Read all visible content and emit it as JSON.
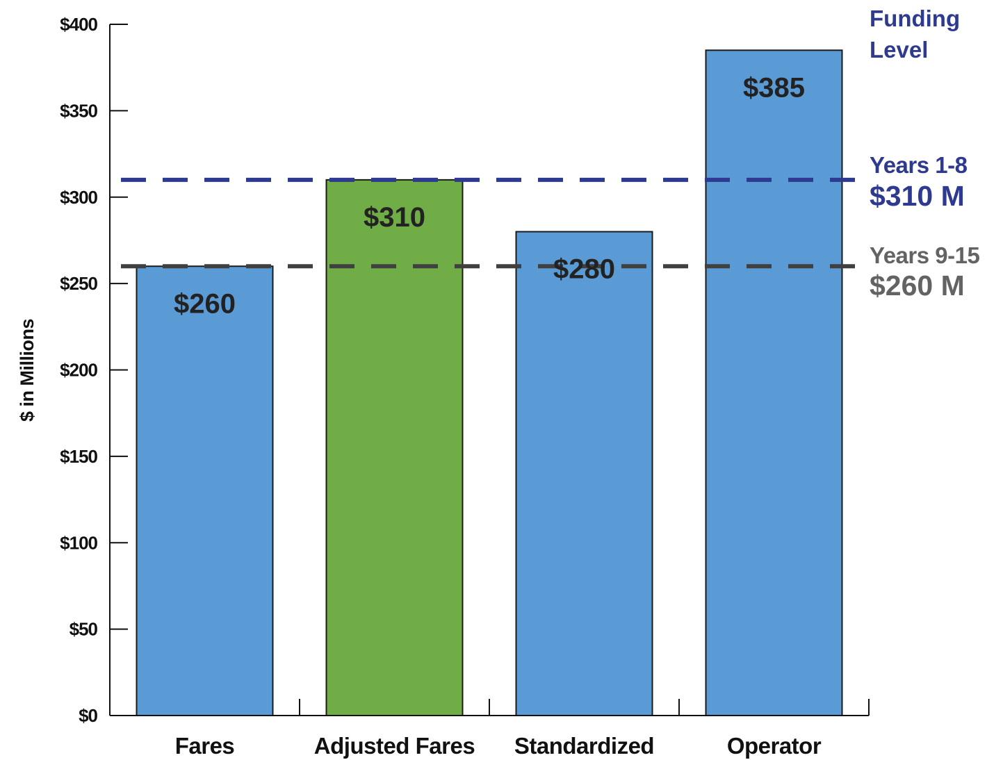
{
  "chart_data": {
    "type": "bar",
    "categories": [
      "Fares",
      "Adjusted Fares",
      "Standardized",
      "Operator"
    ],
    "values": [
      260,
      310,
      280,
      385
    ],
    "value_labels": [
      "$260",
      "$310",
      "$280",
      "$385"
    ],
    "bar_colors": [
      "#5b9bd5",
      "#70ad47",
      "#5b9bd5",
      "#5b9bd5"
    ],
    "title": "",
    "xlabel": "",
    "ylabel": "$ in Millions",
    "ylim": [
      0,
      400
    ],
    "yticks": [
      0,
      50,
      100,
      150,
      200,
      250,
      300,
      350,
      400
    ],
    "ytick_labels": [
      "$0",
      "$50",
      "$100",
      "$150",
      "$200",
      "$250",
      "$300",
      "$350",
      "$400"
    ],
    "grid": false,
    "legend_title": [
      "Funding",
      "Level"
    ],
    "reference_lines": [
      {
        "value": 310,
        "label": "Years 1-8",
        "amount_label": "$310 M",
        "color": "#2e3a8f",
        "label_color": "#2e3a8f",
        "style": "dashed"
      },
      {
        "value": 260,
        "label": "Years 9-15",
        "amount_label": "$260 M",
        "color": "#404040",
        "label_color": "#636363",
        "style": "dashed"
      }
    ]
  },
  "colors": {
    "axis": "#111111",
    "bar_stroke": "#1a1a1a",
    "legend_title": "#2e3a8f"
  }
}
